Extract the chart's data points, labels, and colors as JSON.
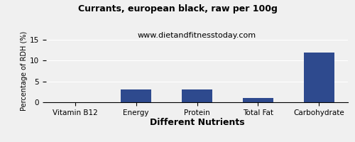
{
  "title": "Currants, european black, raw per 100g",
  "subtitle": "www.dietandfitnesstoday.com",
  "xlabel": "Different Nutrients",
  "ylabel": "Percentage of RDH (%)",
  "categories": [
    "Vitamin B12",
    "Energy",
    "Protein",
    "Total Fat",
    "Carbohydrate"
  ],
  "values": [
    0,
    3.0,
    3.0,
    1.1,
    12.0
  ],
  "bar_color": "#2e4a8e",
  "ylim": [
    0,
    15
  ],
  "yticks": [
    0,
    5,
    10,
    15
  ],
  "background_color": "#f0f0f0",
  "title_fontsize": 9,
  "subtitle_fontsize": 8,
  "xlabel_fontsize": 9,
  "ylabel_fontsize": 7,
  "tick_fontsize": 7.5
}
